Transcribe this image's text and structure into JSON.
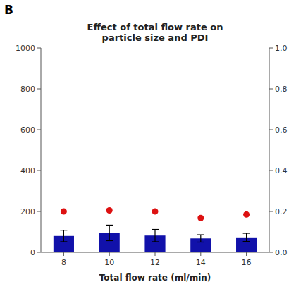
{
  "chart_data": {
    "type": "bar",
    "title": "Effect of total flow rate on\nparticle size and PDI",
    "annotations": [
      "B"
    ],
    "x_label": "Total flow rate (ml/min)",
    "categories": [
      "8",
      "10",
      "12",
      "14",
      "16"
    ],
    "series": [
      {
        "type": "bar",
        "color": "#1111aa",
        "values": [
          80,
          95,
          82,
          68,
          73
        ],
        "errors": [
          28,
          38,
          30,
          18,
          20
        ]
      },
      {
        "type": "scatter",
        "color": "#dd1111",
        "axis": "y2",
        "marker": "circle",
        "values": [
          0.2,
          0.205,
          0.2,
          0.168,
          0.185
        ]
      }
    ],
    "ylim": [
      0,
      1000
    ],
    "yticks": [
      0,
      200,
      400,
      600,
      800,
      1000
    ],
    "y2lim": [
      0.0,
      1.0
    ],
    "y2ticks": [
      {
        "value": 0.0,
        "label": "0.0"
      },
      0.2,
      0.4,
      0.6,
      0.8,
      {
        "value": 1.0,
        "label": "1.0"
      }
    ],
    "grid": false
  }
}
